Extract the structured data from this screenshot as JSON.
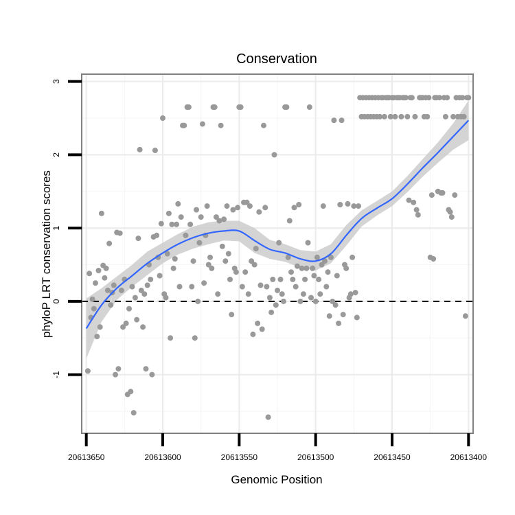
{
  "chart_data": {
    "type": "scatter",
    "title": "Conservation",
    "xlabel": "Genomic Position",
    "ylabel": "phyloP LRT conservation scores",
    "x_reversed": true,
    "xlim": [
      20613653,
      20613397
    ],
    "ylim": [
      -1.8,
      3.1
    ],
    "x_ticks": [
      20613650,
      20613600,
      20613550,
      20613500,
      20613450,
      20613400
    ],
    "x_tick_labels": [
      "20613650",
      "20613600",
      "20613550",
      "20613500",
      "20613450",
      "20613400"
    ],
    "y_ticks": [
      -1,
      0,
      1,
      2,
      3
    ],
    "y_tick_labels": [
      "-1",
      "0",
      "1",
      "2",
      "3"
    ],
    "grid": true,
    "reference_line": {
      "y": 0,
      "style": "dashed",
      "color": "#000000"
    },
    "colors": {
      "points": "#999999",
      "smooth_line": "#3366ff",
      "confidence_band": "#cccccc",
      "panel_border": "#7f7f7f",
      "grid": "#ebebeb"
    },
    "series": [
      {
        "name": "phyloP score",
        "points": [
          [
            20613649,
            -0.95
          ],
          [
            20613648,
            0.38
          ],
          [
            20613647,
            -0.22
          ],
          [
            20613646,
            0.03
          ],
          [
            20613645,
            -0.1
          ],
          [
            20613644,
            0.25
          ],
          [
            20613643,
            -0.48
          ],
          [
            20613642,
            0.42
          ],
          [
            20613641,
            -0.35
          ],
          [
            20613640,
            1.2
          ],
          [
            20613639,
            0.49
          ],
          [
            20613638,
            0.32
          ],
          [
            20613637,
            0.45
          ],
          [
            20613636,
            0.15
          ],
          [
            20613635,
            0.79
          ],
          [
            20613634,
            -0.05
          ],
          [
            20613633,
            0.12
          ],
          [
            20613632,
            0.22
          ],
          [
            20613631,
            -1.0
          ],
          [
            20613630,
            0.94
          ],
          [
            20613629,
            -0.92
          ],
          [
            20613628,
            0.93
          ],
          [
            20613627,
            0.15
          ],
          [
            20613626,
            -0.35
          ],
          [
            20613625,
            0.3
          ],
          [
            20613624,
            -0.3
          ],
          [
            20613623,
            -1.27
          ],
          [
            20613622,
            -0.1
          ],
          [
            20613621,
            -1.23
          ],
          [
            20613620,
            0.2
          ],
          [
            20613619,
            -1.52
          ],
          [
            20613618,
            0.05
          ],
          [
            20613617,
            -0.25
          ],
          [
            20613616,
            0.86
          ],
          [
            20613615,
            2.07
          ],
          [
            20613614,
            0.15
          ],
          [
            20613613,
            -0.35
          ],
          [
            20613612,
            0.1
          ],
          [
            20613611,
            -0.92
          ],
          [
            20613610,
            0.22
          ],
          [
            20613609,
            0.5
          ],
          [
            20613608,
            0.3
          ],
          [
            20613607,
            -1.0
          ],
          [
            20613606,
            0.88
          ],
          [
            20613605,
            2.06
          ],
          [
            20613604,
            0.9
          ],
          [
            20613603,
            0.6
          ],
          [
            20613602,
            0.35
          ],
          [
            20613601,
            1.06
          ],
          [
            20613600,
            2.5
          ],
          [
            20613599,
            0.1
          ],
          [
            20613598,
            0.05
          ],
          [
            20613597,
            0.65
          ],
          [
            20613596,
            1.2
          ],
          [
            20613595,
            -0.5
          ],
          [
            20613594,
            1.05
          ],
          [
            20613593,
            0.45
          ],
          [
            20613592,
            0.58
          ],
          [
            20613591,
            1.05
          ],
          [
            20613590,
            1.33
          ],
          [
            20613589,
            0.2
          ],
          [
            20613588,
            1.15
          ],
          [
            20613587,
            2.4
          ],
          [
            20613586,
            2.4
          ],
          [
            20613585,
            0.9
          ],
          [
            20613584,
            2.65
          ],
          [
            20613583,
            2.65
          ],
          [
            20613582,
            1.05
          ],
          [
            20613581,
            0.2
          ],
          [
            20613580,
            0.55
          ],
          [
            20613579,
            -0.5
          ],
          [
            20613578,
            1.25
          ],
          [
            20613577,
            0.0
          ],
          [
            20613576,
            0.8
          ],
          [
            20613575,
            1.15
          ],
          [
            20613574,
            2.42
          ],
          [
            20613573,
            0.25
          ],
          [
            20613572,
            0.9
          ],
          [
            20613571,
            1.3
          ],
          [
            20613570,
            0.5
          ],
          [
            20613569,
            0.6
          ],
          [
            20613568,
            0.45
          ],
          [
            20613567,
            2.65
          ],
          [
            20613566,
            2.65
          ],
          [
            20613565,
            1.15
          ],
          [
            20613564,
            0.1
          ],
          [
            20613563,
            1.1
          ],
          [
            20613562,
            2.4
          ],
          [
            20613561,
            0.75
          ],
          [
            20613560,
            1.12
          ],
          [
            20613559,
            0.55
          ],
          [
            20613558,
            1.3
          ],
          [
            20613557,
            0.65
          ],
          [
            20613556,
            0.3
          ],
          [
            20613555,
            -0.18
          ],
          [
            20613554,
            1.25
          ],
          [
            20613553,
            0.45
          ],
          [
            20613552,
            0.4
          ],
          [
            20613551,
            1.28
          ],
          [
            20613550,
            2.65
          ],
          [
            20613549,
            2.65
          ],
          [
            20613548,
            0.2
          ],
          [
            20613547,
            1.35
          ],
          [
            20613546,
            0.4
          ],
          [
            20613545,
            1.35
          ],
          [
            20613544,
            0.1
          ],
          [
            20613543,
            1.3
          ],
          [
            20613542,
            0.55
          ],
          [
            20613541,
            -0.45
          ],
          [
            20613540,
            0.5
          ],
          [
            20613539,
            0.72
          ],
          [
            20613538,
            -0.3
          ],
          [
            20613537,
            1.22
          ],
          [
            20613536,
            0.22
          ],
          [
            20613535,
            -0.38
          ],
          [
            20613534,
            2.4
          ],
          [
            20613533,
            1.28
          ],
          [
            20613532,
            0.2
          ],
          [
            20613531,
            -1.58
          ],
          [
            20613530,
            0.05
          ],
          [
            20613529,
            -0.15
          ],
          [
            20613528,
            0.3
          ],
          [
            20613527,
            2.0
          ],
          [
            20613526,
            -0.05
          ],
          [
            20613525,
            0.15
          ],
          [
            20613524,
            0.8
          ],
          [
            20613523,
            0.3
          ],
          [
            20613522,
            0.1
          ],
          [
            20613521,
            0.0
          ],
          [
            20613520,
            2.65
          ],
          [
            20613519,
            2.65
          ],
          [
            20613518,
            0.6
          ],
          [
            20613517,
            1.1
          ],
          [
            20613516,
            0.4
          ],
          [
            20613515,
            0.3
          ],
          [
            20613514,
            1.28
          ],
          [
            20613513,
            0.2
          ],
          [
            20613512,
            0.48
          ],
          [
            20613511,
            1.32
          ],
          [
            20613510,
            0.0
          ],
          [
            20613509,
            0.45
          ],
          [
            20613508,
            0.1
          ],
          [
            20613507,
            0.3
          ],
          [
            20613506,
            0.45
          ],
          [
            20613505,
            0.8
          ],
          [
            20613504,
            2.65
          ],
          [
            20613503,
            0.05
          ],
          [
            20613502,
            0.45
          ],
          [
            20613501,
            0.35
          ],
          [
            20613500,
            0.0
          ],
          [
            20613499,
            0.6
          ],
          [
            20613498,
            0.3
          ],
          [
            20613497,
            0.1
          ],
          [
            20613496,
            0.5
          ],
          [
            20613495,
            1.3
          ],
          [
            20613494,
            0.55
          ],
          [
            20613493,
            0.2
          ],
          [
            20613492,
            0.4
          ],
          [
            20613491,
            -0.2
          ],
          [
            20613490,
            0.6
          ],
          [
            20613489,
            0.0
          ],
          [
            20613488,
            2.47
          ],
          [
            20613487,
            -0.05
          ],
          [
            20613486,
            0.35
          ],
          [
            20613485,
            -0.3
          ],
          [
            20613484,
            1.32
          ],
          [
            20613483,
            2.47
          ],
          [
            20613482,
            -0.18
          ],
          [
            20613481,
            0.5
          ],
          [
            20613480,
            0.45
          ],
          [
            20613479,
            1.33
          ],
          [
            20613478,
            0.05
          ],
          [
            20613477,
            0.1
          ],
          [
            20613476,
            0.6
          ],
          [
            20613475,
            1.3
          ],
          [
            20613474,
            0.12
          ],
          [
            20613473,
            -0.22
          ],
          [
            20613472,
            1.3
          ],
          [
            20613471,
            2.78
          ],
          [
            20613470,
            2.52
          ],
          [
            20613469,
            2.78
          ],
          [
            20613468,
            2.52
          ],
          [
            20613467,
            2.78
          ],
          [
            20613466,
            2.52
          ],
          [
            20613465,
            2.78
          ],
          [
            20613464,
            2.52
          ],
          [
            20613463,
            2.78
          ],
          [
            20613462,
            2.52
          ],
          [
            20613461,
            2.78
          ],
          [
            20613460,
            2.52
          ],
          [
            20613459,
            2.78
          ],
          [
            20613458,
            2.52
          ],
          [
            20613457,
            2.78
          ],
          [
            20613456,
            2.78
          ],
          [
            20613455,
            2.52
          ],
          [
            20613454,
            2.78
          ],
          [
            20613453,
            2.78
          ],
          [
            20613452,
            2.78
          ],
          [
            20613451,
            2.52
          ],
          [
            20613450,
            2.78
          ],
          [
            20613449,
            2.78
          ],
          [
            20613448,
            2.52
          ],
          [
            20613447,
            2.78
          ],
          [
            20613446,
            2.78
          ],
          [
            20613445,
            2.78
          ],
          [
            20613444,
            2.52
          ],
          [
            20613443,
            2.78
          ],
          [
            20613442,
            2.78
          ],
          [
            20613441,
            2.78
          ],
          [
            20613440,
            2.52
          ],
          [
            20613439,
            1.38
          ],
          [
            20613438,
            2.78
          ],
          [
            20613437,
            2.78
          ],
          [
            20613436,
            1.35
          ],
          [
            20613435,
            2.52
          ],
          [
            20613434,
            1.25
          ],
          [
            20613433,
            1.18
          ],
          [
            20613432,
            2.78
          ],
          [
            20613431,
            2.78
          ],
          [
            20613430,
            2.78
          ],
          [
            20613429,
            2.52
          ],
          [
            20613428,
            2.78
          ],
          [
            20613427,
            2.52
          ],
          [
            20613426,
            2.78
          ],
          [
            20613425,
            0.6
          ],
          [
            20613424,
            1.45
          ],
          [
            20613423,
            0.58
          ],
          [
            20613422,
            2.78
          ],
          [
            20613421,
            2.78
          ],
          [
            20613420,
            1.5
          ],
          [
            20613419,
            2.78
          ],
          [
            20613418,
            1.48
          ],
          [
            20613417,
            1.48
          ],
          [
            20613416,
            2.78
          ],
          [
            20613415,
            2.52
          ],
          [
            20613414,
            2.78
          ],
          [
            20613413,
            1.25
          ],
          [
            20613412,
            1.22
          ],
          [
            20613411,
            1.15
          ],
          [
            20613410,
            2.52
          ],
          [
            20613409,
            1.45
          ],
          [
            20613408,
            2.78
          ],
          [
            20613407,
            2.52
          ],
          [
            20613406,
            2.78
          ],
          [
            20613405,
            2.52
          ],
          [
            20613404,
            2.78
          ],
          [
            20613403,
            2.52
          ],
          [
            20613402,
            -0.2
          ],
          [
            20613401,
            2.78
          ],
          [
            20613400,
            2.78
          ]
        ]
      },
      {
        "name": "loess fit",
        "type": "line",
        "x": [
          20613650,
          20613640,
          20613630,
          20613620,
          20613610,
          20613600,
          20613590,
          20613580,
          20613570,
          20613560,
          20613550,
          20613540,
          20613530,
          20613520,
          20613510,
          20613500,
          20613490,
          20613480,
          20613470,
          20613460,
          20613450,
          20613440,
          20613430,
          20613420,
          20613410,
          20613400
        ],
        "y": [
          -0.37,
          -0.05,
          0.18,
          0.35,
          0.52,
          0.66,
          0.78,
          0.87,
          0.93,
          0.96,
          0.96,
          0.83,
          0.71,
          0.66,
          0.58,
          0.55,
          0.65,
          0.9,
          1.13,
          1.27,
          1.4,
          1.6,
          1.82,
          2.03,
          2.25,
          2.47
        ],
        "band_lower": [
          -0.78,
          -0.28,
          0.02,
          0.2,
          0.36,
          0.52,
          0.64,
          0.72,
          0.78,
          0.83,
          0.82,
          0.66,
          0.58,
          0.54,
          0.46,
          0.42,
          0.52,
          0.76,
          1.02,
          1.17,
          1.3,
          1.49,
          1.7,
          1.89,
          2.07,
          2.2
        ],
        "band_upper": [
          0.04,
          0.18,
          0.34,
          0.5,
          0.68,
          0.8,
          0.92,
          1.02,
          1.08,
          1.1,
          1.1,
          1.0,
          0.84,
          0.78,
          0.7,
          0.68,
          0.78,
          1.04,
          1.24,
          1.37,
          1.5,
          1.71,
          1.94,
          2.17,
          2.43,
          2.74
        ]
      }
    ]
  }
}
